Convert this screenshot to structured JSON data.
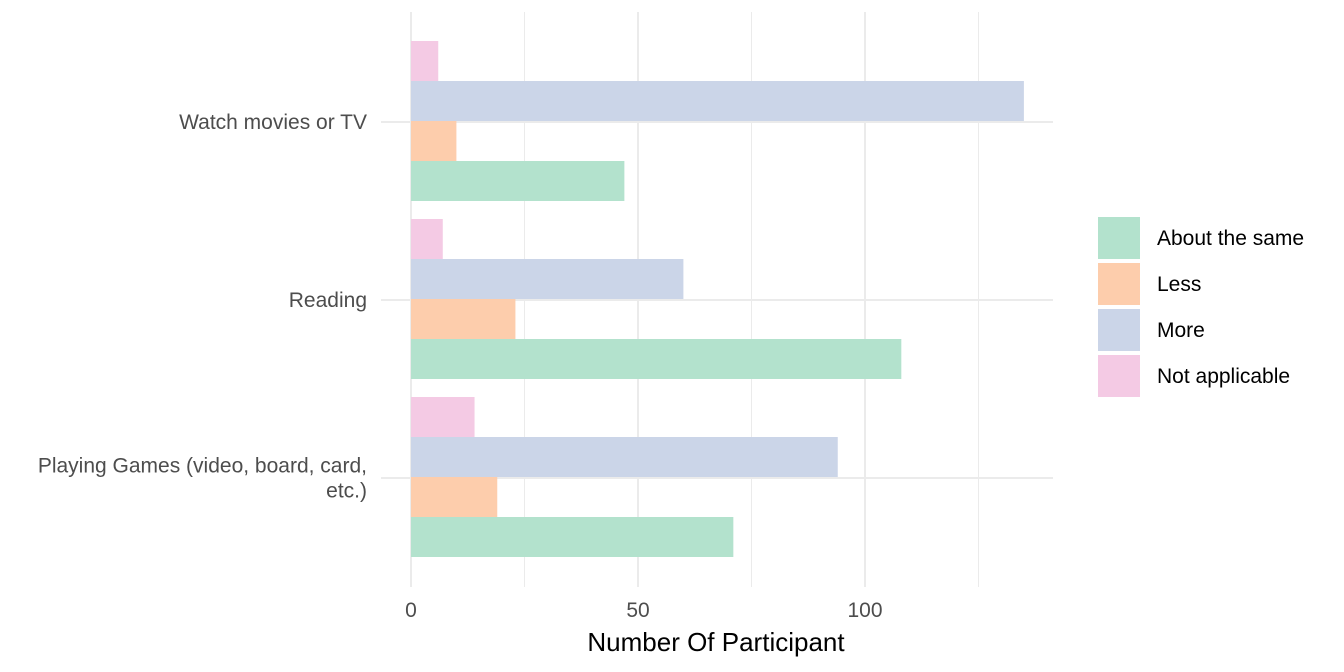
{
  "chart_data": {
    "type": "bar",
    "orientation": "horizontal",
    "categories": [
      "Watch movies or TV",
      "Reading",
      "Playing Games (video, board, card, etc.)"
    ],
    "category_label_lines": [
      [
        "Watch movies or TV"
      ],
      [
        "Reading"
      ],
      [
        "Playing Games (video, board, card,",
        "etc.)"
      ]
    ],
    "series": [
      {
        "name": "About the same",
        "color": "#b3e2cd",
        "values": [
          47,
          108,
          71
        ]
      },
      {
        "name": "Less",
        "color": "#fdcdac",
        "values": [
          10,
          23,
          19
        ]
      },
      {
        "name": "More",
        "color": "#cbd5e8",
        "values": [
          135,
          60,
          94
        ]
      },
      {
        "name": "Not applicable",
        "color": "#f4cae4",
        "values": [
          6,
          7,
          14
        ]
      }
    ],
    "xlabel": "Number Of Participant",
    "ylabel": "",
    "xlim": [
      0,
      141.8
    ],
    "x_ticks": [
      0,
      50,
      100
    ],
    "x_minor_ticks": [
      25,
      75,
      125
    ],
    "grid": true,
    "legend_position": "right"
  }
}
